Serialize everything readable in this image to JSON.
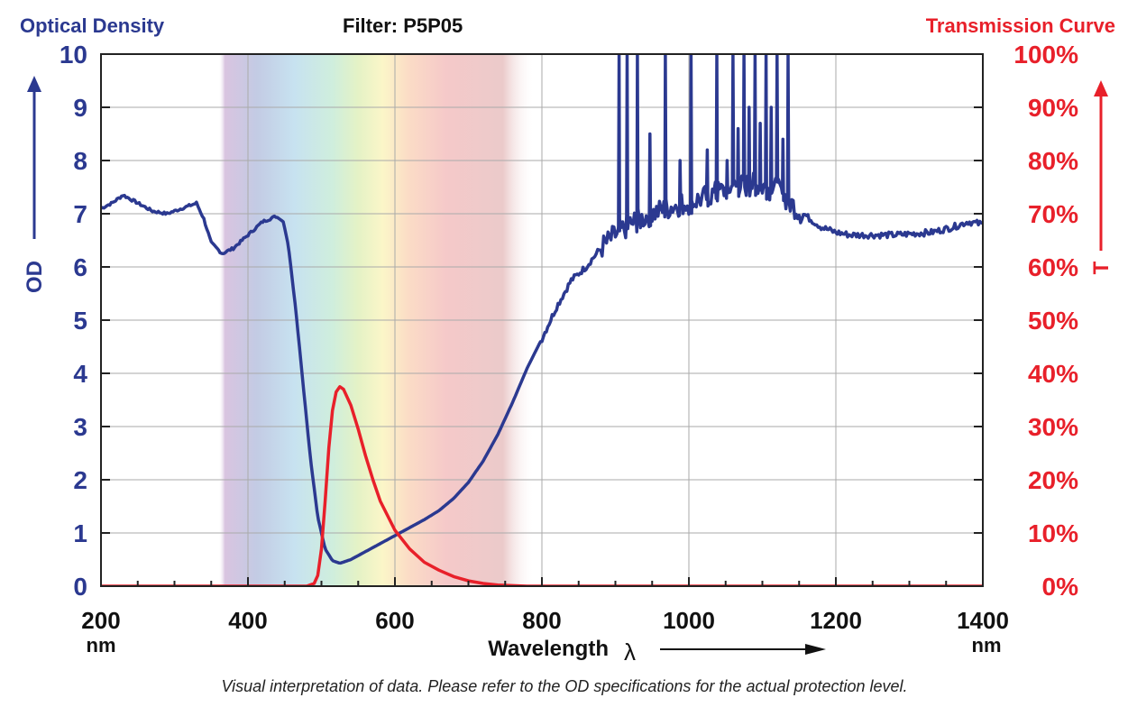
{
  "header": {
    "left_title": "Optical Density",
    "center_title": "Filter: P5P05",
    "right_title": "Transmission Curve"
  },
  "colors": {
    "od": "#2b3990",
    "transmission": "#e8202a",
    "grid": "#aaaaaa"
  },
  "chart_data": {
    "type": "line",
    "x_unit": "nm",
    "x_ticks": [
      "200",
      "400",
      "600",
      "800",
      "1000",
      "1200",
      "1400"
    ],
    "xlim": [
      200,
      1400
    ],
    "xlabel": "Wavelength",
    "xlabel_symbol": "λ",
    "left_axis": {
      "label": "OD",
      "lim": [
        0,
        10
      ],
      "ticks": [
        "0",
        "1",
        "2",
        "3",
        "4",
        "5",
        "6",
        "7",
        "8",
        "9",
        "10"
      ]
    },
    "right_axis": {
      "label": "T",
      "lim": [
        0,
        100
      ],
      "ticks": [
        "0%",
        "10%",
        "20%",
        "30%",
        "40%",
        "50%",
        "60%",
        "70%",
        "80%",
        "90%",
        "100%"
      ]
    },
    "grid": true,
    "visible_spectrum_band": [
      360,
      790
    ],
    "series": [
      {
        "axis": "left",
        "color": "#2b3990",
        "points": [
          [
            200,
            7.1
          ],
          [
            215,
            7.2
          ],
          [
            230,
            7.35
          ],
          [
            250,
            7.2
          ],
          [
            270,
            7.05
          ],
          [
            290,
            7.0
          ],
          [
            310,
            7.1
          ],
          [
            330,
            7.2
          ],
          [
            340,
            6.9
          ],
          [
            350,
            6.45
          ],
          [
            365,
            6.25
          ],
          [
            380,
            6.35
          ],
          [
            400,
            6.6
          ],
          [
            420,
            6.85
          ],
          [
            438,
            6.95
          ],
          [
            448,
            6.85
          ],
          [
            455,
            6.4
          ],
          [
            465,
            5.2
          ],
          [
            475,
            3.8
          ],
          [
            485,
            2.4
          ],
          [
            495,
            1.3
          ],
          [
            505,
            0.7
          ],
          [
            515,
            0.48
          ],
          [
            525,
            0.43
          ],
          [
            540,
            0.5
          ],
          [
            560,
            0.65
          ],
          [
            580,
            0.8
          ],
          [
            600,
            0.95
          ],
          [
            620,
            1.1
          ],
          [
            640,
            1.25
          ],
          [
            660,
            1.42
          ],
          [
            680,
            1.65
          ],
          [
            700,
            1.95
          ],
          [
            720,
            2.35
          ],
          [
            740,
            2.85
          ],
          [
            760,
            3.45
          ],
          [
            780,
            4.1
          ],
          [
            800,
            4.65
          ],
          [
            820,
            5.25
          ],
          [
            840,
            5.75
          ],
          [
            860,
            6.0
          ],
          [
            880,
            6.35
          ],
          [
            900,
            6.6
          ],
          [
            920,
            6.8
          ],
          [
            950,
            7.0
          ],
          [
            980,
            7.15
          ],
          [
            1000,
            7.2
          ],
          [
            1030,
            7.35
          ],
          [
            1060,
            7.5
          ],
          [
            1090,
            7.55
          ],
          [
            1120,
            7.45
          ],
          [
            1150,
            7.05
          ],
          [
            1180,
            6.75
          ],
          [
            1200,
            6.65
          ],
          [
            1220,
            6.6
          ],
          [
            1250,
            6.6
          ],
          [
            1280,
            6.6
          ],
          [
            1300,
            6.62
          ],
          [
            1330,
            6.65
          ],
          [
            1360,
            6.75
          ],
          [
            1380,
            6.85
          ],
          [
            1400,
            6.8
          ]
        ],
        "spikes": [
          [
            905,
            10
          ],
          [
            916,
            10
          ],
          [
            930,
            10
          ],
          [
            947,
            8.5
          ],
          [
            968,
            10
          ],
          [
            988,
            8.0
          ],
          [
            1003,
            10
          ],
          [
            1025,
            8.2
          ],
          [
            1038,
            10
          ],
          [
            1052,
            8.0
          ],
          [
            1060,
            10
          ],
          [
            1067,
            8.6
          ],
          [
            1075,
            10
          ],
          [
            1082,
            9.0
          ],
          [
            1090,
            10
          ],
          [
            1097,
            8.7
          ],
          [
            1105,
            10
          ],
          [
            1112,
            9.0
          ],
          [
            1120,
            10
          ],
          [
            1128,
            8.4
          ],
          [
            1135,
            10
          ]
        ]
      },
      {
        "axis": "right",
        "color": "#e8202a",
        "points": [
          [
            200,
            0
          ],
          [
            480,
            0
          ],
          [
            490,
            0.5
          ],
          [
            495,
            2
          ],
          [
            500,
            7
          ],
          [
            505,
            16
          ],
          [
            510,
            26
          ],
          [
            515,
            33
          ],
          [
            520,
            36.5
          ],
          [
            525,
            37.5
          ],
          [
            530,
            37
          ],
          [
            540,
            34
          ],
          [
            550,
            29.5
          ],
          [
            560,
            24.5
          ],
          [
            570,
            20
          ],
          [
            580,
            16
          ],
          [
            600,
            10.5
          ],
          [
            620,
            7
          ],
          [
            640,
            4.5
          ],
          [
            660,
            3
          ],
          [
            680,
            1.8
          ],
          [
            700,
            1
          ],
          [
            720,
            0.5
          ],
          [
            740,
            0.2
          ],
          [
            760,
            0.1
          ],
          [
            780,
            0
          ],
          [
            1400,
            0
          ]
        ]
      }
    ]
  },
  "footnote": "Visual interpretation of data. Please refer to the OD specifications for the actual protection level."
}
